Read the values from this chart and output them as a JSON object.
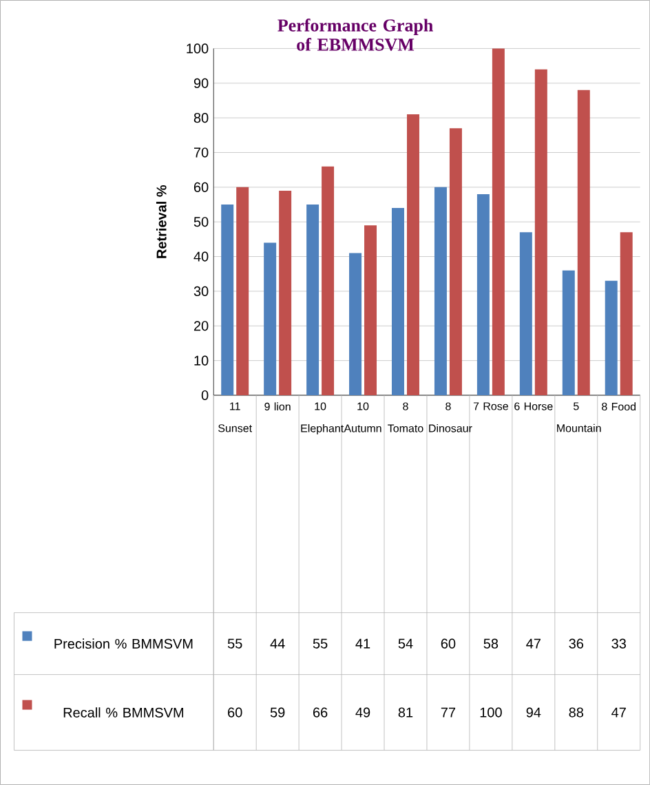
{
  "chart_data": {
    "type": "bar",
    "title": "Performance Graph of EBMMSVM",
    "ylabel": "Retrieval %",
    "categories": [
      "11 Sunset",
      "9 lion",
      "10 Elephant",
      "10 Autumn",
      "8 Tomato",
      "8 Dinosaur",
      "7 Rose",
      "6 Horse",
      "5 Mountain",
      "8 Food"
    ],
    "series": [
      {
        "name": "Precision % BMMSVM",
        "color": "#4f81bd",
        "values": [
          55,
          44,
          55,
          41,
          54,
          60,
          58,
          47,
          36,
          33
        ]
      },
      {
        "name": "Recall % BMMSVM",
        "color": "#c0504d",
        "values": [
          60,
          59,
          66,
          49,
          81,
          77,
          100,
          94,
          88,
          47
        ]
      }
    ],
    "ylim": [
      0,
      100
    ],
    "yticks": [
      0,
      10,
      20,
      30,
      40,
      50,
      60,
      70,
      80,
      90,
      100
    ],
    "grid": "y",
    "legend": "bottom",
    "data_labels": true
  }
}
